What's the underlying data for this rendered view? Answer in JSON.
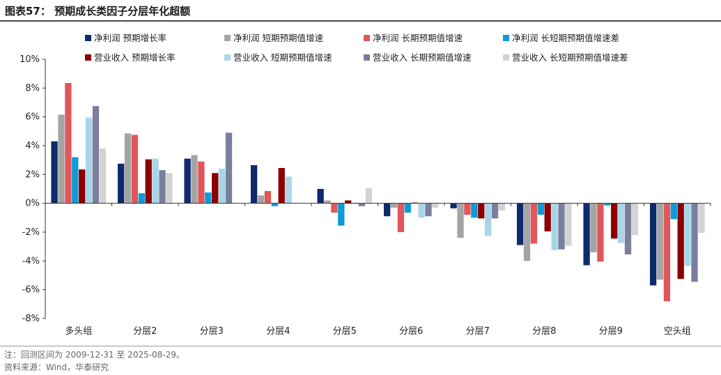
{
  "header": {
    "title": "图表57：  预期成长类因子分层年化超额"
  },
  "footer": {
    "note": "注：回测区间为 2009-12-31 至 2025-08-29。",
    "source": "资料来源：Wind，华泰研究"
  },
  "chart_data": {
    "type": "bar",
    "title": "预期成长类因子分层年化超额",
    "categories": [
      "多头组",
      "分层2",
      "分层3",
      "分层4",
      "分层5",
      "分层6",
      "分层7",
      "分层8",
      "分层9",
      "空头组"
    ],
    "ylim": [
      -8,
      10
    ],
    "yticks": [
      -8,
      -6,
      -4,
      -2,
      0,
      2,
      4,
      6,
      8,
      10
    ],
    "ytick_labels": [
      "-8%",
      "-6%",
      "-4%",
      "-2%",
      "0%",
      "2%",
      "4%",
      "6%",
      "8%",
      "10%"
    ],
    "xlabel": "",
    "ylabel": "",
    "legend_position": "top",
    "series": [
      {
        "name": "净利润 预期增长率",
        "color": "#0e2a6b",
        "values": [
          4.3,
          2.75,
          3.1,
          2.65,
          1.0,
          -0.9,
          -0.35,
          -2.9,
          -4.3,
          -5.7
        ]
      },
      {
        "name": "净利润 短期预期值增速",
        "color": "#a4a4a4",
        "values": [
          6.15,
          4.85,
          3.35,
          0.55,
          0.2,
          -0.3,
          -2.4,
          -4.0,
          -3.4,
          -5.3
        ]
      },
      {
        "name": "净利润 长期预期值增速",
        "color": "#e15759",
        "values": [
          8.35,
          4.75,
          2.9,
          0.85,
          -0.65,
          -2.0,
          -0.8,
          -2.8,
          -4.05,
          -6.8
        ]
      },
      {
        "name": "净利润 长短期预期值增速差",
        "color": "#0f9ad6",
        "values": [
          3.2,
          0.7,
          0.75,
          -0.2,
          -1.55,
          -0.65,
          -1.0,
          -0.8,
          -0.15,
          -1.1
        ]
      },
      {
        "name": "营业收入 预期增长率",
        "color": "#8b0000",
        "values": [
          2.35,
          3.05,
          2.1,
          2.45,
          0.2,
          0.05,
          -1.05,
          -1.95,
          -2.45,
          -5.25
        ]
      },
      {
        "name": "营业收入 短期预期值增速",
        "color": "#a9d5e8",
        "values": [
          5.95,
          3.1,
          2.4,
          1.85,
          -0.05,
          -1.0,
          -2.25,
          -3.25,
          -2.75,
          -4.35
        ]
      },
      {
        "name": "营业收入 长期预期值增速",
        "color": "#7b7f9e",
        "values": [
          6.75,
          2.3,
          4.9,
          0.0,
          -0.2,
          -0.9,
          -1.05,
          -3.2,
          -3.55,
          -5.45
        ]
      },
      {
        "name": "营业收入 长短期预期值增速差",
        "color": "#d3d3d3",
        "values": [
          3.8,
          2.1,
          0.0,
          0.0,
          1.05,
          -0.3,
          -0.5,
          -2.95,
          -2.2,
          -2.05
        ]
      }
    ]
  }
}
